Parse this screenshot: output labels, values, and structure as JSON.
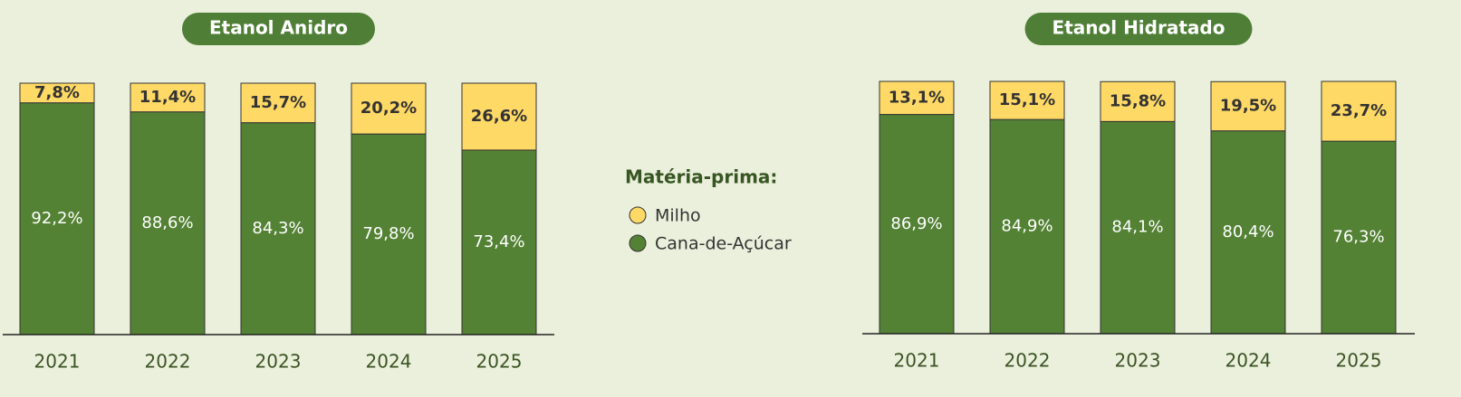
{
  "legend_title": "Matéria-prima:",
  "chart_data": [
    {
      "type": "stacked_bar",
      "title": "Etanol Anidro",
      "categories": [
        "2021",
        "2022",
        "2023",
        "2024",
        "2025"
      ],
      "series": [
        {
          "name": "Cana-de-Açúcar",
          "color": "#548235",
          "values": [
            92.2,
            88.6,
            84.3,
            79.8,
            73.4
          ],
          "value_labels": [
            "92,2%",
            "88,6%",
            "84,3%",
            "79,8%",
            "73,4%"
          ]
        },
        {
          "name": "Milho",
          "color": "#ffd966",
          "values": [
            7.8,
            11.4,
            15.7,
            20.2,
            26.6
          ],
          "value_labels": [
            "7,8%",
            "11,4%",
            "15,7%",
            "20,2%",
            "26,6%"
          ]
        }
      ]
    },
    {
      "type": "stacked_bar",
      "title": "Etanol Hidratado",
      "categories": [
        "2021",
        "2022",
        "2023",
        "2024",
        "2025"
      ],
      "series": [
        {
          "name": "Cana-de-Açúcar",
          "color": "#548235",
          "values": [
            86.9,
            84.9,
            84.1,
            80.4,
            76.3
          ],
          "value_labels": [
            "86,9%",
            "84,9%",
            "84,1%",
            "80,4%",
            "76,3%"
          ]
        },
        {
          "name": "Milho",
          "color": "#ffd966",
          "values": [
            13.1,
            15.1,
            15.8,
            19.5,
            23.7
          ],
          "value_labels": [
            "13,1%",
            "15,1%",
            "15,8%",
            "19,5%",
            "23,7%"
          ]
        }
      ]
    }
  ]
}
